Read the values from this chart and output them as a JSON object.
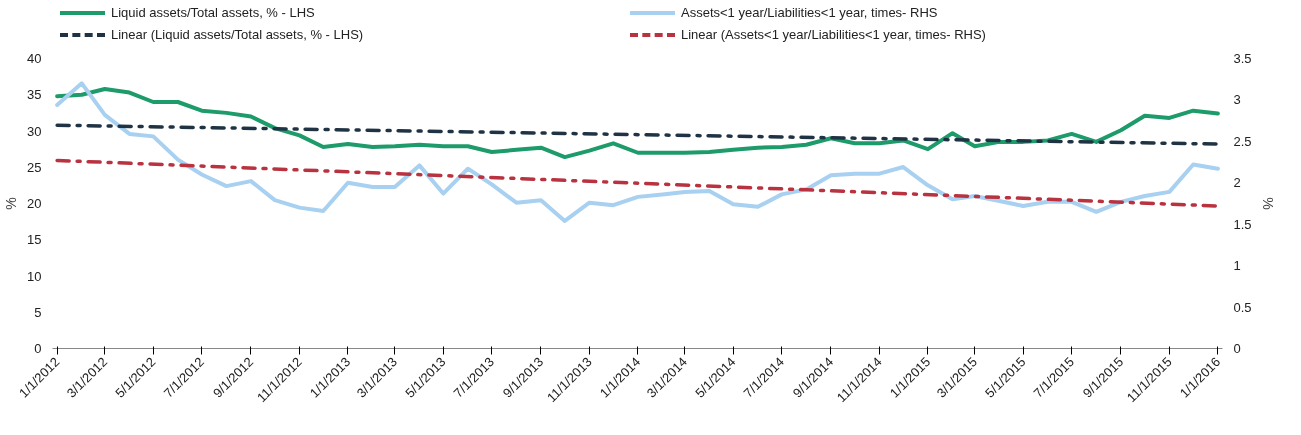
{
  "chart_data": {
    "type": "line",
    "x": [
      "2012-01",
      "2012-02",
      "2012-03",
      "2012-04",
      "2012-05",
      "2012-06",
      "2012-07",
      "2012-08",
      "2012-09",
      "2012-10",
      "2012-11",
      "2012-12",
      "2013-01",
      "2013-02",
      "2013-03",
      "2013-04",
      "2013-05",
      "2013-06",
      "2013-07",
      "2013-08",
      "2013-09",
      "2013-10",
      "2013-11",
      "2013-12",
      "2014-01",
      "2014-02",
      "2014-03",
      "2014-04",
      "2014-05",
      "2014-06",
      "2014-07",
      "2014-08",
      "2014-09",
      "2014-10",
      "2014-11",
      "2014-12",
      "2015-01",
      "2015-02",
      "2015-03",
      "2015-04",
      "2015-05",
      "2015-06",
      "2015-07",
      "2015-08",
      "2015-09",
      "2015-10",
      "2015-11",
      "2015-12",
      "2016-01"
    ],
    "series": [
      {
        "name": "Liquid assets/Total assets, % - LHS",
        "color": "#1e9b6a",
        "line_style": "solid",
        "values": [
          34.8,
          35.0,
          35.8,
          35.3,
          34.0,
          34.0,
          32.8,
          32.5,
          32.0,
          30.4,
          29.4,
          27.8,
          28.2,
          27.8,
          27.9,
          28.1,
          27.9,
          27.9,
          27.1,
          27.4,
          27.7,
          26.4,
          27.3,
          28.3,
          27.0,
          27.0,
          27.0,
          27.1,
          27.4,
          27.7,
          27.8,
          28.1,
          29.0,
          28.3,
          28.3,
          28.7,
          27.5,
          29.7,
          27.9,
          28.5,
          28.5,
          28.7,
          29.6,
          28.5,
          30.1,
          32.1,
          31.8,
          32.8,
          32.4
        ]
      },
      {
        "name": "Assets<1 year/Liabilities<1 year, times- RHS",
        "color": "#a8d0f0",
        "axis": "y2",
        "line_style": "solid",
        "values": [
          2.94,
          3.2,
          2.82,
          2.59,
          2.56,
          2.28,
          2.1,
          1.96,
          2.02,
          1.79,
          1.7,
          1.66,
          2.0,
          1.95,
          1.95,
          2.21,
          1.87,
          2.17,
          1.98,
          1.76,
          1.79,
          1.54,
          1.76,
          1.73,
          1.83,
          1.86,
          1.89,
          1.9,
          1.74,
          1.71,
          1.86,
          1.92,
          2.09,
          2.11,
          2.11,
          2.19,
          1.97,
          1.8,
          1.84,
          1.78,
          1.72,
          1.77,
          1.77,
          1.65,
          1.77,
          1.84,
          1.89,
          2.22,
          2.17
        ]
      },
      {
        "name": "Linear (Liquid assets/Total assets, % - LHS)",
        "color": "#1f3344",
        "line_style": "dashdot",
        "x": [
          "2012-01",
          "2016-01"
        ],
        "values": [
          30.8,
          28.2
        ]
      },
      {
        "name": "Linear (Assets<1 year/Liabilities<1 year, times- RHS)",
        "color": "#b8323f",
        "axis": "y2",
        "line_style": "dashdot",
        "x": [
          "2012-01",
          "2016-01"
        ],
        "values": [
          2.27,
          1.72
        ]
      }
    ],
    "ylabel": "%",
    "y2label": "%",
    "ylim": [
      0,
      40
    ],
    "yticks": [
      0,
      5,
      10,
      15,
      20,
      25,
      30,
      35,
      40
    ],
    "y2lim": [
      0,
      3.5
    ],
    "y2ticks": [
      0,
      0.5,
      1,
      1.5,
      2,
      2.5,
      3,
      3.5
    ],
    "xlim": [
      "2012-01",
      "2016-01"
    ],
    "xticks": [
      {
        "value": "2012-01",
        "label": "1/1/2012"
      },
      {
        "value": "2012-03",
        "label": "3/1/2012"
      },
      {
        "value": "2012-05",
        "label": "5/1/2012"
      },
      {
        "value": "2012-07",
        "label": "7/1/2012"
      },
      {
        "value": "2012-09",
        "label": "9/1/2012"
      },
      {
        "value": "2012-11",
        "label": "11/1/2012"
      },
      {
        "value": "2013-01",
        "label": "1/1/2013"
      },
      {
        "value": "2013-03",
        "label": "3/1/2013"
      },
      {
        "value": "2013-05",
        "label": "5/1/2013"
      },
      {
        "value": "2013-07",
        "label": "7/1/2013"
      },
      {
        "value": "2013-09",
        "label": "9/1/2013"
      },
      {
        "value": "2013-11",
        "label": "11/1/2013"
      },
      {
        "value": "2014-01",
        "label": "1/1/2014"
      },
      {
        "value": "2014-03",
        "label": "3/1/2014"
      },
      {
        "value": "2014-05",
        "label": "5/1/2014"
      },
      {
        "value": "2014-07",
        "label": "7/1/2014"
      },
      {
        "value": "2014-09",
        "label": "9/1/2014"
      },
      {
        "value": "2014-11",
        "label": "11/1/2014"
      },
      {
        "value": "2015-01",
        "label": "1/1/2015"
      },
      {
        "value": "2015-03",
        "label": "3/1/2015"
      },
      {
        "value": "2015-05",
        "label": "5/1/2015"
      },
      {
        "value": "2015-07",
        "label": "7/1/2015"
      },
      {
        "value": "2015-09",
        "label": "9/1/2015"
      },
      {
        "value": "2015-11",
        "label": "11/1/2015"
      },
      {
        "value": "2016-01",
        "label": "1/1/2016"
      }
    ],
    "grid": false,
    "legend": "top",
    "marker": "none"
  }
}
